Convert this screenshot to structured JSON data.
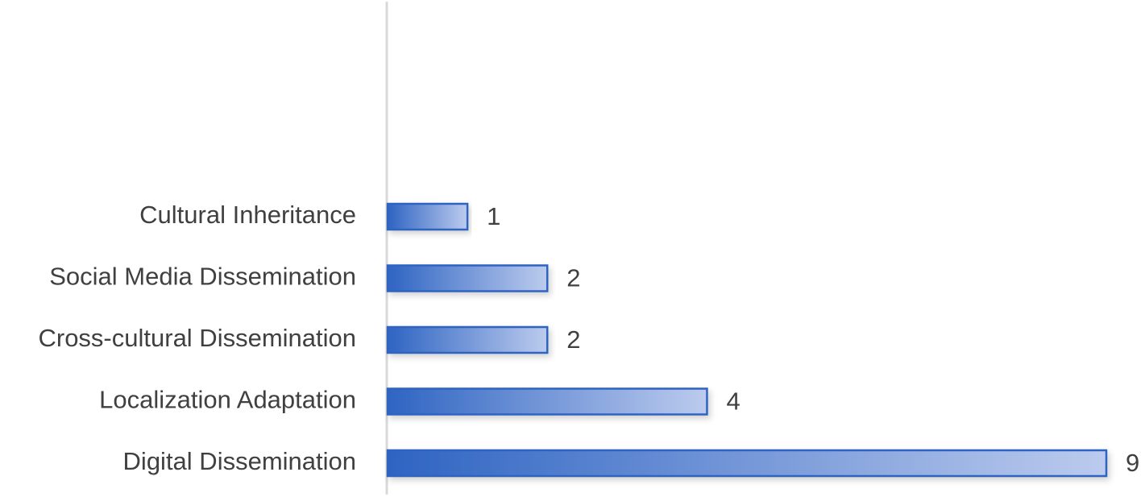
{
  "chart_data": {
    "type": "bar",
    "orientation": "horizontal",
    "categories": [
      "Cultural Inheritance",
      "Social Media Dissemination",
      "Cross-cultural Dissemination",
      "Localization Adaptation",
      "Digital Dissemination"
    ],
    "values": [
      1,
      2,
      2,
      4,
      9
    ],
    "color": "#2e64c2"
  }
}
